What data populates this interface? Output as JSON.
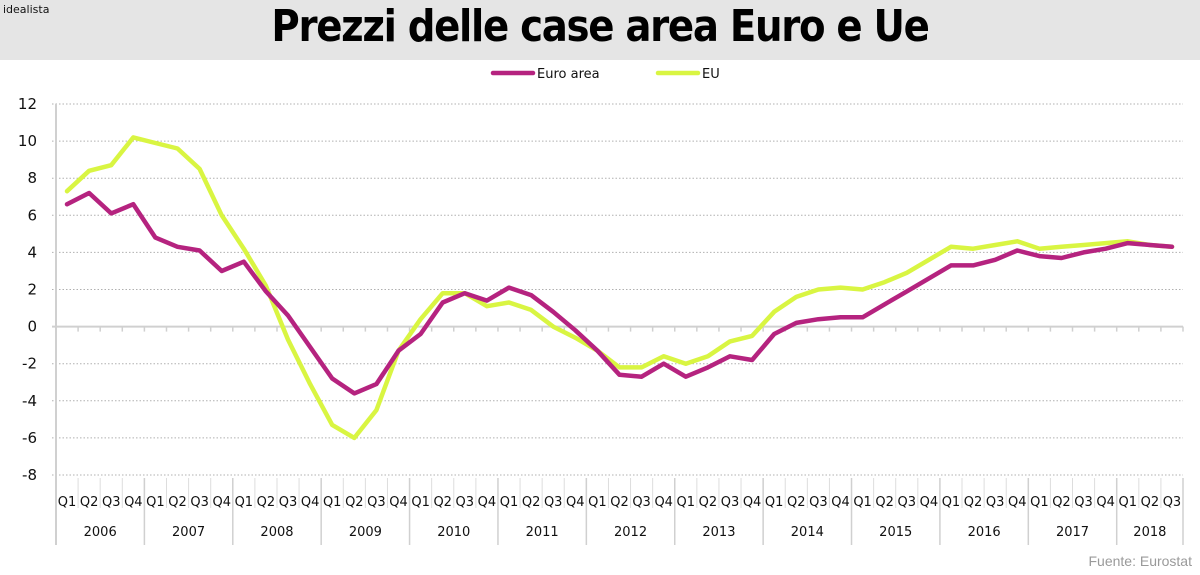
{
  "header": {
    "brand": "idealista",
    "title": "Prezzi delle case area Euro e Ue"
  },
  "source": "Fuente: Eurostat",
  "colors": {
    "euro_area": "#b5237f",
    "eu": "#d9f542",
    "grid": "#b0b0b0",
    "axis": "#d0d0d0",
    "header_bg": "#e5e5e5"
  },
  "chart_data": {
    "type": "line",
    "title": "Prezzi delle case area Euro e Ue",
    "xlabel": "",
    "ylabel": "",
    "ylim": [
      -8,
      12
    ],
    "yticks": [
      12,
      10,
      8,
      6,
      4,
      2,
      0,
      -2,
      -4,
      -6,
      -8
    ],
    "grid": true,
    "legend": "top-center",
    "quarter_labels": [
      "Q1",
      "Q2",
      "Q3",
      "Q4"
    ],
    "years": [
      {
        "label": "2006",
        "quarters": 4
      },
      {
        "label": "2007",
        "quarters": 4
      },
      {
        "label": "2008",
        "quarters": 4
      },
      {
        "label": "2009",
        "quarters": 4
      },
      {
        "label": "2010",
        "quarters": 4
      },
      {
        "label": "2011",
        "quarters": 4
      },
      {
        "label": "2012",
        "quarters": 4
      },
      {
        "label": "2013",
        "quarters": 4
      },
      {
        "label": "2014",
        "quarters": 4
      },
      {
        "label": "2015",
        "quarters": 4
      },
      {
        "label": "2016",
        "quarters": 4
      },
      {
        "label": "2017",
        "quarters": 4
      },
      {
        "label": "2018",
        "quarters": 3
      }
    ],
    "series": [
      {
        "name": "Euro area",
        "color": "#b5237f",
        "values": [
          6.6,
          7.2,
          6.1,
          6.6,
          4.8,
          4.3,
          4.1,
          3.0,
          3.5,
          1.9,
          0.6,
          -1.1,
          -2.8,
          -3.6,
          -3.1,
          -1.3,
          -0.4,
          1.3,
          1.8,
          1.4,
          2.1,
          1.7,
          0.8,
          -0.2,
          -1.3,
          -2.6,
          -2.7,
          -2.0,
          -2.7,
          -2.2,
          -1.6,
          -1.8,
          -0.4,
          0.2,
          0.4,
          0.5,
          0.5,
          1.2,
          1.9,
          2.6,
          3.3,
          3.3,
          3.6,
          4.1,
          3.8,
          3.7,
          4.0,
          4.2,
          4.5,
          4.4,
          4.3
        ]
      },
      {
        "name": "EU",
        "color": "#d9f542",
        "values": [
          7.3,
          8.4,
          8.7,
          10.2,
          9.9,
          9.6,
          8.5,
          6.0,
          4.2,
          2.2,
          -0.7,
          -3.1,
          -5.3,
          -6.0,
          -4.5,
          -1.3,
          0.4,
          1.8,
          1.8,
          1.1,
          1.3,
          0.9,
          0.0,
          -0.6,
          -1.3,
          -2.2,
          -2.2,
          -1.6,
          -2.0,
          -1.6,
          -0.8,
          -0.5,
          0.8,
          1.6,
          2.0,
          2.1,
          2.0,
          2.4,
          2.9,
          3.6,
          4.3,
          4.2,
          4.4,
          4.6,
          4.2,
          4.3,
          4.4,
          4.5,
          4.6,
          4.4,
          4.3
        ]
      }
    ]
  }
}
